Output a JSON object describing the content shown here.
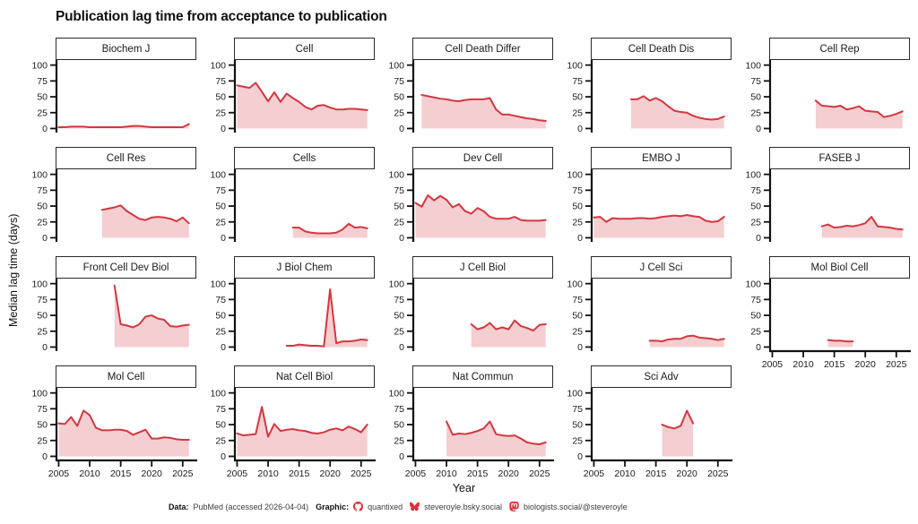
{
  "page_title": "Publication lag time from acceptance to publication",
  "chart_data": {
    "type": "area",
    "title": "Publication lag time from acceptance to publication",
    "xlabel": "Year",
    "ylabel": "Median lag time (days)",
    "x_ticks": [
      2005,
      2010,
      2015,
      2020,
      2025
    ],
    "y_ticks": [
      0,
      25,
      50,
      75,
      100
    ],
    "xlim": [
      2004.5,
      2027.2
    ],
    "ylim": [
      -5,
      108
    ],
    "grid": "off",
    "line_color": "#d13840",
    "fill_color": "#f4ced1",
    "facets": [
      {
        "title": "Biochem J",
        "start_year": 2005,
        "x_axis": false,
        "values": [
          2,
          2,
          3,
          3,
          3,
          2,
          2,
          2,
          2,
          2,
          2,
          3,
          4,
          4,
          3,
          2,
          2,
          2,
          2,
          2,
          2,
          7
        ]
      },
      {
        "title": "Cell",
        "start_year": 2005,
        "x_axis": false,
        "values": [
          68,
          66,
          64,
          72,
          58,
          43,
          57,
          42,
          55,
          48,
          42,
          34,
          30,
          36,
          37,
          33,
          30,
          30,
          31,
          31,
          30,
          29
        ]
      },
      {
        "title": "Cell Death Differ",
        "start_year": 2006,
        "x_axis": false,
        "values": [
          53,
          51,
          49,
          47,
          46,
          44,
          43,
          45,
          46,
          46,
          46,
          48,
          30,
          22,
          22,
          20,
          18,
          16,
          15,
          13,
          12
        ]
      },
      {
        "title": "Cell Death Dis",
        "start_year": 2011,
        "x_axis": false,
        "values": [
          46,
          46,
          51,
          44,
          48,
          43,
          35,
          28,
          26,
          25,
          20,
          17,
          15,
          14,
          15,
          19
        ]
      },
      {
        "title": "Cell Rep",
        "start_year": 2012,
        "x_axis": false,
        "values": [
          44,
          36,
          35,
          34,
          36,
          30,
          32,
          35,
          28,
          27,
          26,
          18,
          20,
          23,
          27
        ]
      },
      {
        "title": "Cell Res",
        "start_year": 2012,
        "x_axis": false,
        "values": [
          44,
          46,
          48,
          51,
          42,
          36,
          30,
          28,
          32,
          33,
          32,
          30,
          26,
          32,
          23
        ]
      },
      {
        "title": "Cells",
        "start_year": 2014,
        "x_axis": false,
        "values": [
          16,
          16,
          10,
          8,
          7,
          7,
          7,
          8,
          13,
          22,
          16,
          17,
          15
        ]
      },
      {
        "title": "Dev Cell",
        "start_year": 2005,
        "x_axis": false,
        "values": [
          55,
          49,
          67,
          59,
          66,
          60,
          48,
          53,
          42,
          38,
          47,
          42,
          33,
          30,
          30,
          30,
          33,
          28,
          27,
          27,
          27,
          28
        ]
      },
      {
        "title": "EMBO J",
        "start_year": 2005,
        "x_axis": false,
        "values": [
          32,
          33,
          25,
          31,
          30,
          30,
          30,
          31,
          31,
          30,
          31,
          33,
          34,
          35,
          34,
          36,
          34,
          33,
          27,
          25,
          26,
          33
        ]
      },
      {
        "title": "FASEB J",
        "start_year": 2013,
        "x_axis": false,
        "values": [
          18,
          21,
          16,
          17,
          19,
          18,
          20,
          23,
          33,
          18,
          17,
          16,
          14,
          13
        ]
      },
      {
        "title": "Front Cell Dev Biol",
        "start_year": 2014,
        "x_axis": false,
        "values": [
          97,
          36,
          34,
          31,
          36,
          48,
          50,
          45,
          43,
          33,
          32,
          34,
          35
        ]
      },
      {
        "title": "J Biol Chem",
        "start_year": 2013,
        "x_axis": false,
        "values": [
          2,
          2,
          4,
          3,
          2,
          2,
          1,
          91,
          6,
          9,
          9,
          10,
          12,
          11
        ]
      },
      {
        "title": "J Cell Biol",
        "start_year": 2014,
        "x_axis": false,
        "values": [
          36,
          28,
          31,
          38,
          28,
          31,
          28,
          42,
          33,
          30,
          26,
          35,
          36
        ]
      },
      {
        "title": "J Cell Sci",
        "start_year": 2014,
        "x_axis": false,
        "values": [
          10,
          10,
          9,
          12,
          13,
          13,
          17,
          18,
          15,
          14,
          13,
          11,
          13
        ]
      },
      {
        "title": "Mol Biol Cell",
        "start_year": 2014,
        "x_axis": true,
        "values": [
          11,
          10,
          10,
          9,
          9
        ]
      },
      {
        "title": "Mol Cell",
        "start_year": 2005,
        "x_axis": true,
        "values": [
          52,
          51,
          62,
          48,
          72,
          65,
          45,
          41,
          41,
          42,
          42,
          40,
          34,
          38,
          42,
          28,
          28,
          30,
          29,
          27,
          26,
          26
        ]
      },
      {
        "title": "Nat Cell Biol",
        "start_year": 2005,
        "x_axis": true,
        "values": [
          36,
          33,
          34,
          35,
          78,
          31,
          51,
          40,
          42,
          43,
          41,
          40,
          37,
          36,
          38,
          42,
          44,
          41,
          47,
          43,
          38,
          50
        ]
      },
      {
        "title": "Nat Commun",
        "start_year": 2010,
        "x_axis": true,
        "values": [
          55,
          34,
          36,
          35,
          37,
          40,
          44,
          55,
          35,
          33,
          32,
          33,
          28,
          22,
          20,
          19,
          22
        ]
      },
      {
        "title": "Sci Adv",
        "start_year": 2016,
        "x_axis": true,
        "values": [
          50,
          46,
          44,
          48,
          72,
          52
        ]
      }
    ]
  },
  "footer": {
    "data_label": "Data:",
    "data_text": "PubMed (accessed 2026-04-04)",
    "graphic_label": "Graphic:",
    "github_text": "quantixed",
    "bluesky_text": "steveroyle.bsky.social",
    "mastodon_text": "biologists.social/@steveroyle",
    "icon_color": "#da2f3a"
  }
}
